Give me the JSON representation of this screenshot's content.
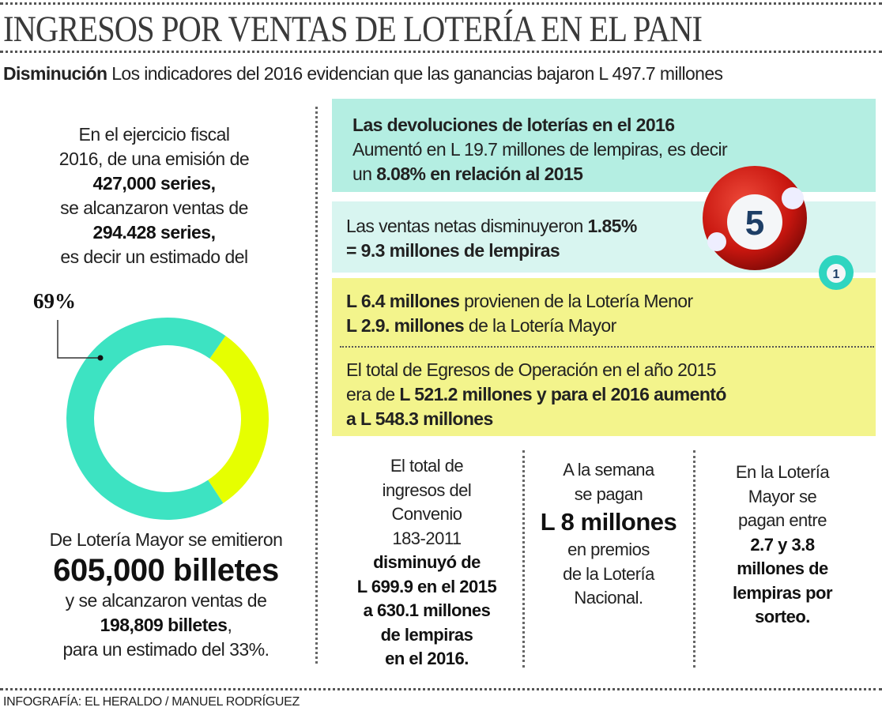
{
  "title": "INGRESOS POR VENTAS DE LOTERÍA EN EL PANI",
  "subtitle": {
    "bold": "Disminución",
    "text": " Los indicadores del 2016 evidencian que las ganancias bajaron L 497.7 millones"
  },
  "left": {
    "intro": [
      {
        "text": "En el ejercicio fiscal",
        "bold": false
      },
      {
        "text": "2016, de una emisión de",
        "bold": false
      },
      {
        "text": "427,000 series,",
        "bold": true
      },
      {
        "text": "se alcanzaron ventas de",
        "bold": false
      },
      {
        "text": "294.428 series,",
        "bold": true
      },
      {
        "text": "es decir un estimado del",
        "bold": false
      }
    ],
    "mayor": {
      "line1": "De Lotería Mayor se emitieron",
      "big": "605,000 billetes",
      "line3": "y se alcanzaron ventas de",
      "bold4": "198,809 billetes",
      "comma": ",",
      "line5": "para un estimado del 33%."
    }
  },
  "chart_data": {
    "type": "pie",
    "donut": true,
    "values": [
      69,
      31
    ],
    "data_labels": [
      "69%",
      ""
    ],
    "colors": [
      "#3de3c2",
      "#e6ff00"
    ]
  },
  "boxes": {
    "devoluciones": {
      "title": "Las devoluciones de loterías en el 2016",
      "line2": "Aumentó en L 19.7 millones de lempiras, es decir",
      "line3a": "un ",
      "line3b": "8.08% en relación al 2015",
      "color": "#b4eee2"
    },
    "ventas": {
      "a": "Las ventas netas disminuyeron ",
      "b": "1.85%",
      "c": "= 9.3 millones de lempiras",
      "color": "#d8f5f0"
    },
    "menor": {
      "a1": "L 6.4 millones",
      "a2": " provienen de la Lotería Menor",
      "b1": "L 2.9. millones",
      "b2": " de la Lotería Mayor",
      "color": "#f3f48c"
    },
    "egresos": {
      "l1": "El total de Egresos de Operación en el año 2015",
      "l2a": "era de ",
      "l2b": "L 521.2 millones y para el 2016 aumentó",
      "l3": "a L 548.3 millones"
    }
  },
  "columns": [
    {
      "lines": [
        {
          "text": "El total de",
          "bold": false
        },
        {
          "text": "ingresos del",
          "bold": false
        },
        {
          "text": "Convenio",
          "bold": false
        },
        {
          "text": "183-2011",
          "bold": false
        },
        {
          "text": "disminuyó de",
          "bold": true
        },
        {
          "text": "L 699.9 en el 2015",
          "bold": true
        },
        {
          "text": "a 630.1 millones",
          "bold": true
        },
        {
          "text": "de lempiras",
          "bold": true
        },
        {
          "text": "en el 2016.",
          "bold": true
        }
      ]
    },
    {
      "lines": [
        {
          "text": "A la semana",
          "bold": false
        },
        {
          "text": "se pagan",
          "bold": false
        },
        {
          "text": "L 8 millones",
          "bold": true,
          "big": true
        },
        {
          "text": "en premios",
          "bold": false
        },
        {
          "text": "de la Lotería",
          "bold": false
        },
        {
          "text": "Nacional.",
          "bold": false
        }
      ]
    },
    {
      "lines": [
        {
          "text": "En la Lotería",
          "bold": false
        },
        {
          "text": "Mayor se",
          "bold": false
        },
        {
          "text": "pagan entre",
          "bold": false
        },
        {
          "text": "2.7 y 3.8",
          "bold": true
        },
        {
          "text": "millones de",
          "bold": true
        },
        {
          "text": "lempiras por",
          "bold": true
        },
        {
          "text": "sorteo.",
          "bold": true
        }
      ]
    }
  ],
  "balls": {
    "big": "5",
    "small": "1"
  },
  "credit": "INFOGRAFÍA: EL HERALDO / MANUEL RODRÍGUEZ"
}
